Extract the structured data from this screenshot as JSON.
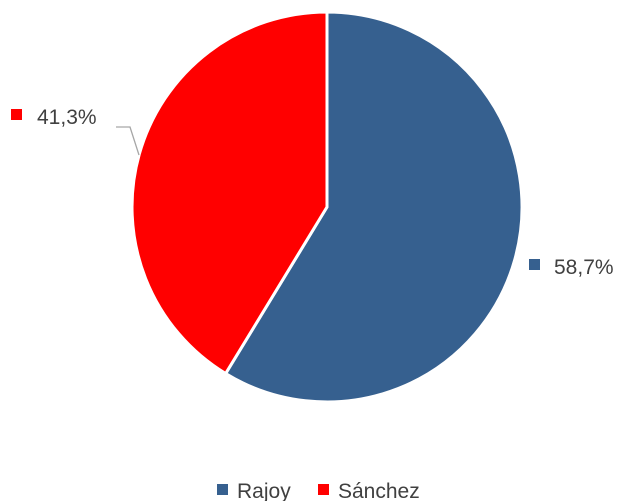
{
  "chart_data": {
    "type": "pie",
    "title": "",
    "legend_position": "bottom",
    "slices": [
      {
        "name": "Rajoy",
        "value": 58.7,
        "label": "58,7%",
        "color": "#36608F"
      },
      {
        "name": "Sánchez",
        "value": 41.3,
        "label": "41,3%",
        "color": "#FF0000"
      }
    ]
  },
  "legend": {
    "items": [
      {
        "label": "Rajoy",
        "color": "#36608F"
      },
      {
        "label": "Sánchez",
        "color": "#FF0000"
      }
    ]
  }
}
